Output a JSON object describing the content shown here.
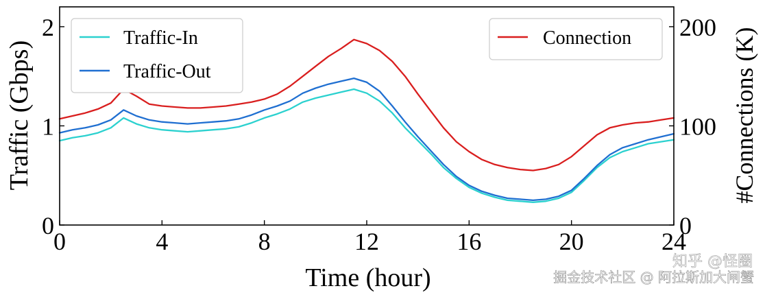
{
  "chart_data": {
    "type": "line",
    "xlabel": "Time (hour)",
    "ylabel": "Traffic (Gbps)",
    "y2label": "#Connections (K)",
    "xlim": [
      0,
      24
    ],
    "ylim": [
      0,
      2.2
    ],
    "y2lim": [
      0,
      220
    ],
    "xticks": [
      0,
      4,
      8,
      12,
      16,
      20,
      24
    ],
    "yticks": [
      0,
      1,
      2
    ],
    "y2ticks": [
      0,
      100,
      200
    ],
    "legend_left": [
      "Traffic-In",
      "Traffic-Out"
    ],
    "legend_right": [
      "Connection"
    ],
    "colors": {
      "traffic_in": "#2bd1cf",
      "traffic_out": "#1f6fd1",
      "connection": "#d91e1e"
    },
    "series": [
      {
        "name": "Traffic-In",
        "axis": "left",
        "x": [
          0,
          0.5,
          1,
          1.5,
          2,
          2.5,
          3,
          3.5,
          4,
          4.5,
          5,
          5.5,
          6,
          6.5,
          7,
          7.5,
          8,
          8.5,
          9,
          9.5,
          10,
          10.5,
          11,
          11.5,
          12,
          12.5,
          13,
          13.5,
          14,
          14.5,
          15,
          15.5,
          16,
          16.5,
          17,
          17.5,
          18,
          18.5,
          19,
          19.5,
          20,
          20.5,
          21,
          21.5,
          22,
          22.5,
          23,
          23.5,
          24
        ],
        "values": [
          0.85,
          0.88,
          0.9,
          0.93,
          0.98,
          1.08,
          1.02,
          0.98,
          0.96,
          0.95,
          0.94,
          0.95,
          0.96,
          0.97,
          0.99,
          1.03,
          1.08,
          1.12,
          1.17,
          1.24,
          1.28,
          1.31,
          1.34,
          1.37,
          1.33,
          1.25,
          1.13,
          0.98,
          0.85,
          0.72,
          0.58,
          0.47,
          0.38,
          0.32,
          0.28,
          0.25,
          0.24,
          0.23,
          0.24,
          0.27,
          0.33,
          0.45,
          0.58,
          0.68,
          0.74,
          0.78,
          0.82,
          0.84,
          0.86
        ]
      },
      {
        "name": "Traffic-Out",
        "axis": "left",
        "x": [
          0,
          0.5,
          1,
          1.5,
          2,
          2.5,
          3,
          3.5,
          4,
          4.5,
          5,
          5.5,
          6,
          6.5,
          7,
          7.5,
          8,
          8.5,
          9,
          9.5,
          10,
          10.5,
          11,
          11.5,
          12,
          12.5,
          13,
          13.5,
          14,
          14.5,
          15,
          15.5,
          16,
          16.5,
          17,
          17.5,
          18,
          18.5,
          19,
          19.5,
          20,
          20.5,
          21,
          21.5,
          22,
          22.5,
          23,
          23.5,
          24
        ],
        "values": [
          0.93,
          0.96,
          0.98,
          1.01,
          1.06,
          1.16,
          1.1,
          1.06,
          1.04,
          1.03,
          1.02,
          1.03,
          1.04,
          1.05,
          1.07,
          1.11,
          1.16,
          1.2,
          1.25,
          1.33,
          1.38,
          1.42,
          1.45,
          1.48,
          1.44,
          1.35,
          1.2,
          1.04,
          0.89,
          0.75,
          0.61,
          0.49,
          0.4,
          0.34,
          0.3,
          0.27,
          0.26,
          0.25,
          0.26,
          0.29,
          0.35,
          0.47,
          0.6,
          0.71,
          0.78,
          0.82,
          0.86,
          0.89,
          0.92
        ]
      },
      {
        "name": "Connection",
        "axis": "right",
        "x": [
          0,
          0.5,
          1,
          1.5,
          2,
          2.5,
          3,
          3.5,
          4,
          4.5,
          5,
          5.5,
          6,
          6.5,
          7,
          7.5,
          8,
          8.5,
          9,
          9.5,
          10,
          10.5,
          11,
          11.5,
          12,
          12.5,
          13,
          13.5,
          14,
          14.5,
          15,
          15.5,
          16,
          16.5,
          17,
          17.5,
          18,
          18.5,
          19,
          19.5,
          20,
          20.5,
          21,
          21.5,
          22,
          22.5,
          23,
          23.5,
          24
        ],
        "values": [
          107,
          110,
          113,
          117,
          123,
          137,
          130,
          122,
          120,
          119,
          118,
          118,
          119,
          120,
          122,
          124,
          127,
          132,
          140,
          150,
          160,
          170,
          178,
          187,
          183,
          176,
          165,
          150,
          132,
          115,
          98,
          84,
          74,
          66,
          61,
          58,
          56,
          55,
          57,
          61,
          69,
          80,
          91,
          98,
          101,
          103,
          104,
          106,
          108
        ]
      }
    ]
  },
  "watermark": {
    "line1": "知乎 @怪圈",
    "line2": "掘金技术社区 @ 阿拉斯加大闸蟹"
  }
}
